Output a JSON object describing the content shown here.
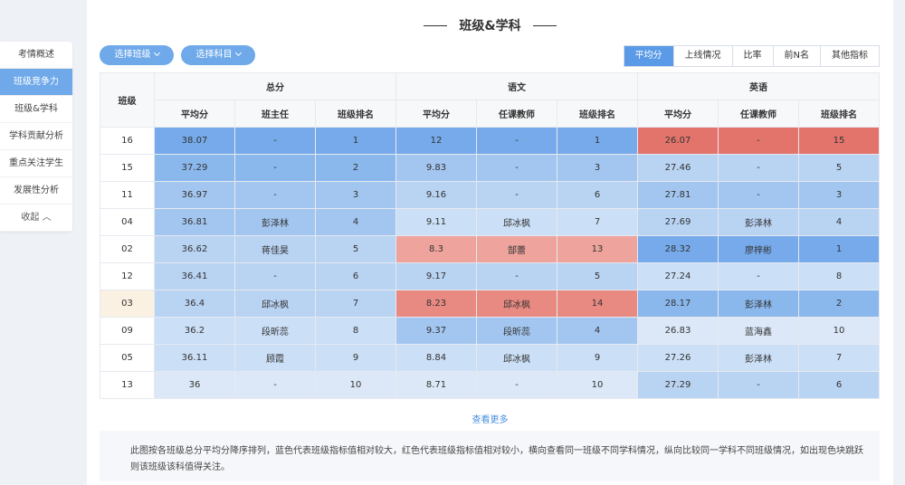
{
  "sidebar": {
    "items": [
      {
        "label": "考情概述",
        "active": false
      },
      {
        "label": "班级竞争力",
        "active": true
      },
      {
        "label": "班级&学科",
        "active": false
      },
      {
        "label": "学科贡献分析",
        "active": false
      },
      {
        "label": "重点关注学生",
        "active": false
      },
      {
        "label": "发展性分析",
        "active": false
      }
    ],
    "collapse_label": "收起"
  },
  "section": {
    "title": "班级&学科"
  },
  "filters": {
    "class_label": "选择班级",
    "subject_label": "选择科目"
  },
  "tabs": [
    {
      "label": "平均分",
      "active": true
    },
    {
      "label": "上线情况",
      "active": false
    },
    {
      "label": "比率",
      "active": false
    },
    {
      "label": "前N名",
      "active": false
    },
    {
      "label": "其他指标",
      "active": false
    }
  ],
  "table": {
    "class_header": "班级",
    "groups": [
      "总分",
      "语文",
      "英语"
    ],
    "subheaders": [
      [
        "平均分",
        "班主任",
        "班级排名"
      ],
      [
        "平均分",
        "任课教师",
        "班级排名"
      ],
      [
        "平均分",
        "任课教师",
        "班级排名"
      ]
    ],
    "rows": [
      {
        "cls": "16",
        "highlight": false,
        "groups": [
          {
            "cells": [
              "38.07",
              "-",
              "1"
            ],
            "tone": "b5"
          },
          {
            "cells": [
              "12",
              "-",
              "1"
            ],
            "tone": "b5"
          },
          {
            "cells": [
              "26.07",
              "-",
              "15"
            ],
            "tone": "r5"
          }
        ]
      },
      {
        "cls": "15",
        "highlight": false,
        "groups": [
          {
            "cells": [
              "37.29",
              "-",
              "2"
            ],
            "tone": "b4"
          },
          {
            "cells": [
              "9.83",
              "-",
              "3"
            ],
            "tone": "b3"
          },
          {
            "cells": [
              "27.46",
              "-",
              "5"
            ],
            "tone": "b2"
          }
        ]
      },
      {
        "cls": "11",
        "highlight": false,
        "groups": [
          {
            "cells": [
              "36.97",
              "-",
              "3"
            ],
            "tone": "b3"
          },
          {
            "cells": [
              "9.16",
              "-",
              "6"
            ],
            "tone": "b2"
          },
          {
            "cells": [
              "27.81",
              "-",
              "3"
            ],
            "tone": "b3"
          }
        ]
      },
      {
        "cls": "04",
        "highlight": false,
        "groups": [
          {
            "cells": [
              "36.81",
              "彭泽林",
              "4"
            ],
            "tone": "b3"
          },
          {
            "cells": [
              "9.11",
              "邱冰枫",
              "7"
            ],
            "tone": "b1"
          },
          {
            "cells": [
              "27.69",
              "彭泽林",
              "4"
            ],
            "tone": "b2"
          }
        ]
      },
      {
        "cls": "02",
        "highlight": false,
        "groups": [
          {
            "cells": [
              "36.62",
              "蒋佳昊",
              "5"
            ],
            "tone": "b2"
          },
          {
            "cells": [
              "8.3",
              "郜蕾",
              "13"
            ],
            "tone": "r3"
          },
          {
            "cells": [
              "28.32",
              "廖梓彬",
              "1"
            ],
            "tone": "b5"
          }
        ]
      },
      {
        "cls": "12",
        "highlight": false,
        "groups": [
          {
            "cells": [
              "36.41",
              "-",
              "6"
            ],
            "tone": "b2"
          },
          {
            "cells": [
              "9.17",
              "-",
              "5"
            ],
            "tone": "b2"
          },
          {
            "cells": [
              "27.24",
              "-",
              "8"
            ],
            "tone": "b1"
          }
        ]
      },
      {
        "cls": "03",
        "highlight": true,
        "groups": [
          {
            "cells": [
              "36.4",
              "邱冰枫",
              "7"
            ],
            "tone": "b2"
          },
          {
            "cells": [
              "8.23",
              "邱冰枫",
              "14"
            ],
            "tone": "r4"
          },
          {
            "cells": [
              "28.17",
              "彭泽林",
              "2"
            ],
            "tone": "b4"
          }
        ]
      },
      {
        "cls": "09",
        "highlight": false,
        "groups": [
          {
            "cells": [
              "36.2",
              "段昕蕊",
              "8"
            ],
            "tone": "b1"
          },
          {
            "cells": [
              "9.37",
              "段昕蕊",
              "4"
            ],
            "tone": "b3"
          },
          {
            "cells": [
              "26.83",
              "蓝海鑫",
              "10"
            ],
            "tone": "b0"
          }
        ]
      },
      {
        "cls": "05",
        "highlight": false,
        "groups": [
          {
            "cells": [
              "36.11",
              "顾霞",
              "9"
            ],
            "tone": "b1"
          },
          {
            "cells": [
              "8.84",
              "邱冰枫",
              "9"
            ],
            "tone": "b1"
          },
          {
            "cells": [
              "27.26",
              "彭泽林",
              "7"
            ],
            "tone": "b1"
          }
        ]
      },
      {
        "cls": "13",
        "highlight": false,
        "groups": [
          {
            "cells": [
              "36",
              "-",
              "10"
            ],
            "tone": "b0"
          },
          {
            "cells": [
              "8.71",
              "-",
              "10"
            ],
            "tone": "b0"
          },
          {
            "cells": [
              "27.29",
              "-",
              "6"
            ],
            "tone": "b2"
          }
        ]
      }
    ]
  },
  "colors": {
    "b5": "#76aaea",
    "b4": "#8ab7ec",
    "b3": "#a3c6f0",
    "b2": "#b9d3f3",
    "b1": "#cbdff6",
    "b0": "#dce8f8",
    "r5": "#e2746c",
    "r4": "#e98a82",
    "r3": "#eea39c"
  },
  "more_label": "查看更多",
  "note": "此图按各班级总分平均分降序排列，蓝色代表班级指标值相对较大，红色代表班级指标值相对较小，横向查看同一班级不同学科情况，纵向比较同一学科不同班级情况，如出现色块跳跃则该班级该科值得关注。"
}
